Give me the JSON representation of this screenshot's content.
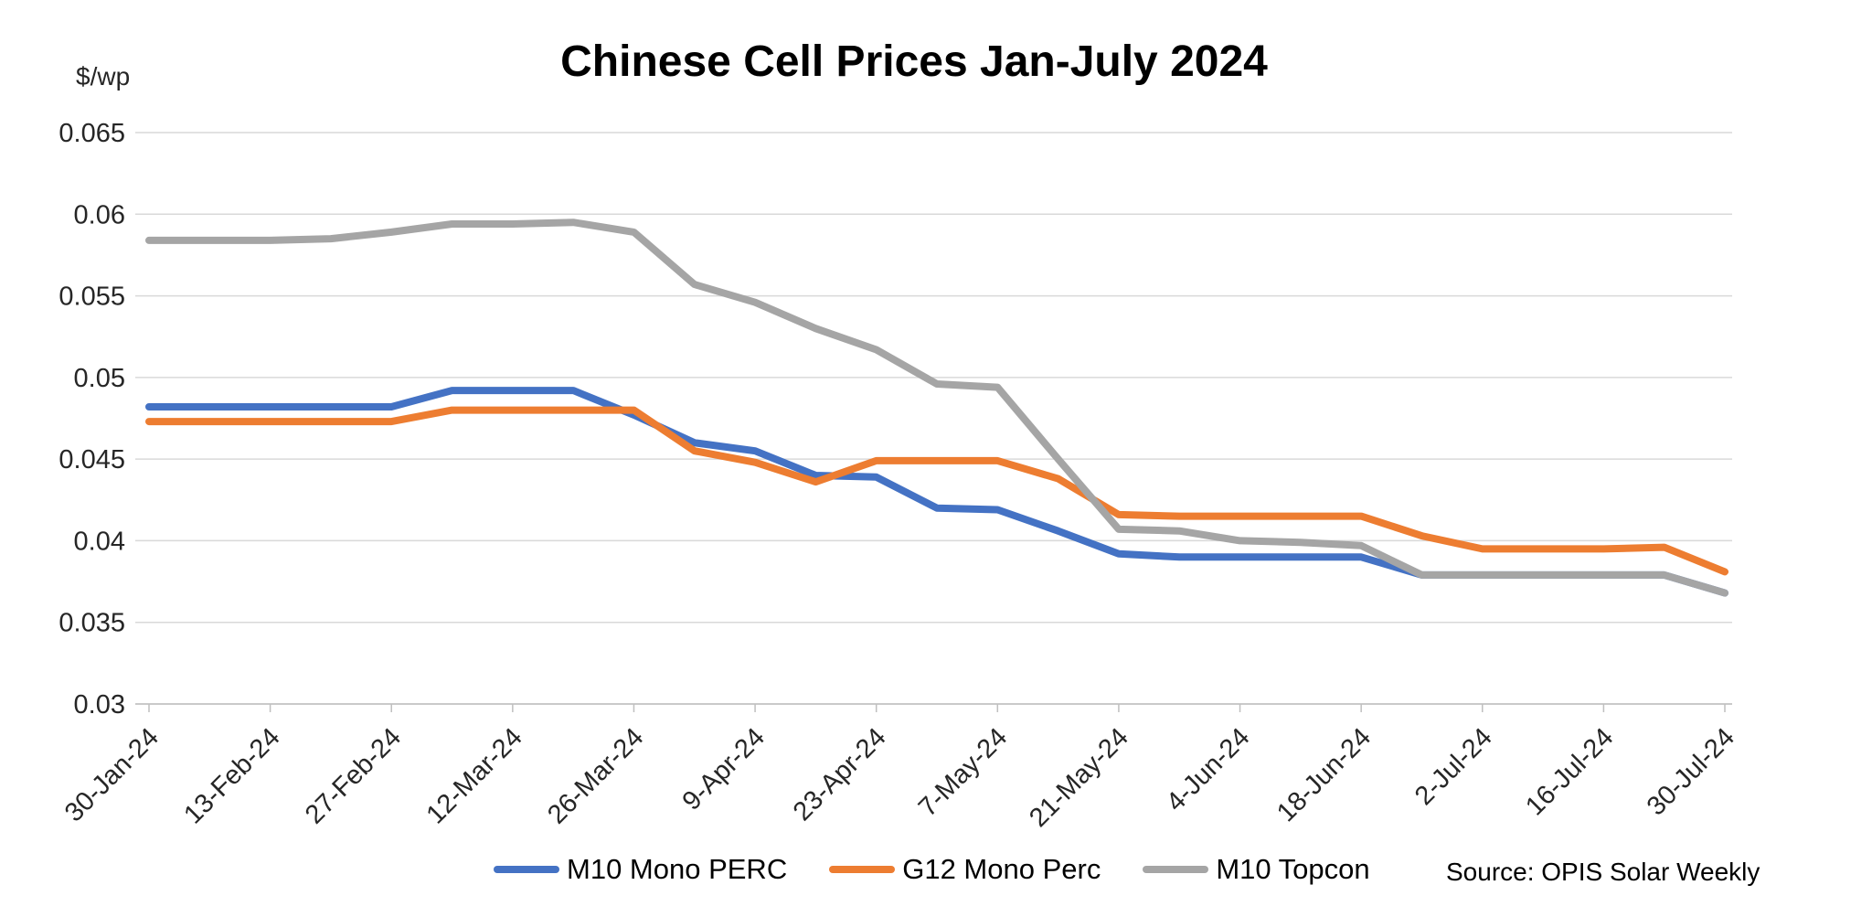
{
  "chart_data": {
    "type": "line",
    "title": "Chinese Cell Prices Jan-July 2024",
    "y_unit_label": "$/wp",
    "source_note": "Source: OPIS Solar Weekly",
    "x": [
      "30-Jan-24",
      "6-Feb-24",
      "13-Feb-24",
      "20-Feb-24",
      "27-Feb-24",
      "5-Mar-24",
      "12-Mar-24",
      "19-Mar-24",
      "26-Mar-24",
      "2-Apr-24",
      "9-Apr-24",
      "16-Apr-24",
      "23-Apr-24",
      "30-Apr-24",
      "7-May-24",
      "14-May-24",
      "21-May-24",
      "28-May-24",
      "4-Jun-24",
      "11-Jun-24",
      "18-Jun-24",
      "25-Jun-24",
      "2-Jul-24",
      "9-Jul-24",
      "16-Jul-24",
      "23-Jul-24",
      "30-Jul-24"
    ],
    "x_tick_label_indices": [
      0,
      2,
      4,
      6,
      8,
      10,
      12,
      14,
      16,
      18,
      20,
      22,
      24,
      26
    ],
    "x_tick_labels_visible": [
      "30-Jan-24",
      "13-Feb-24",
      "27-Feb-24",
      "12-Mar-24",
      "26-Mar-24",
      "9-Apr-24",
      "23-Apr-24",
      "7-May-24",
      "21-May-24",
      "4-Jun-24",
      "18-Jun-24",
      "2-Jul-24",
      "16-Jul-24",
      "30-Jul-24"
    ],
    "series": [
      {
        "name": "M10 Mono PERC",
        "color": "#4472C4",
        "values": [
          0.0482,
          0.0482,
          0.0482,
          0.0482,
          0.0482,
          0.0492,
          0.0492,
          0.0492,
          0.0477,
          0.046,
          0.0455,
          0.044,
          0.0439,
          0.042,
          0.0419,
          0.0406,
          0.0392,
          0.039,
          0.039,
          0.039,
          0.039,
          0.0379,
          0.0379,
          0.0379,
          0.0379,
          0.0379,
          0.0368
        ]
      },
      {
        "name": "G12 Mono Perc",
        "color": "#ED7D31",
        "values": [
          0.0473,
          0.0473,
          0.0473,
          0.0473,
          0.0473,
          0.048,
          0.048,
          0.048,
          0.048,
          0.0455,
          0.0448,
          0.0436,
          0.0449,
          0.0449,
          0.0449,
          0.0438,
          0.0416,
          0.0415,
          0.0415,
          0.0415,
          0.0415,
          0.0403,
          0.0395,
          0.0395,
          0.0395,
          0.0396,
          0.0381
        ]
      },
      {
        "name": "M10 Topcon",
        "color": "#A5A5A5",
        "values": [
          0.0584,
          0.0584,
          0.0584,
          0.0585,
          0.0589,
          0.0594,
          0.0594,
          0.0595,
          0.0589,
          0.0557,
          0.0546,
          0.053,
          0.0517,
          0.0496,
          0.0494,
          0.045,
          0.0407,
          0.0406,
          0.04,
          0.0399,
          0.0397,
          0.0379,
          0.0379,
          0.0379,
          0.0379,
          0.0379,
          0.0368
        ]
      }
    ],
    "ylim": [
      0.03,
      0.065
    ],
    "y_ticks": [
      0.065,
      0.06,
      0.055,
      0.05,
      0.045,
      0.04,
      0.035,
      0.03
    ],
    "y_tick_labels": [
      "0.065",
      "0.06",
      "0.055",
      "0.05",
      "0.045",
      "0.04",
      "0.035",
      "0.03"
    ],
    "grid": "horizontal",
    "legend_position": "bottom",
    "colors": {
      "gridline": "#D9D9D9",
      "axis_line": "#BFBFBF",
      "tick_label": "#262626",
      "title": "#000000"
    }
  }
}
